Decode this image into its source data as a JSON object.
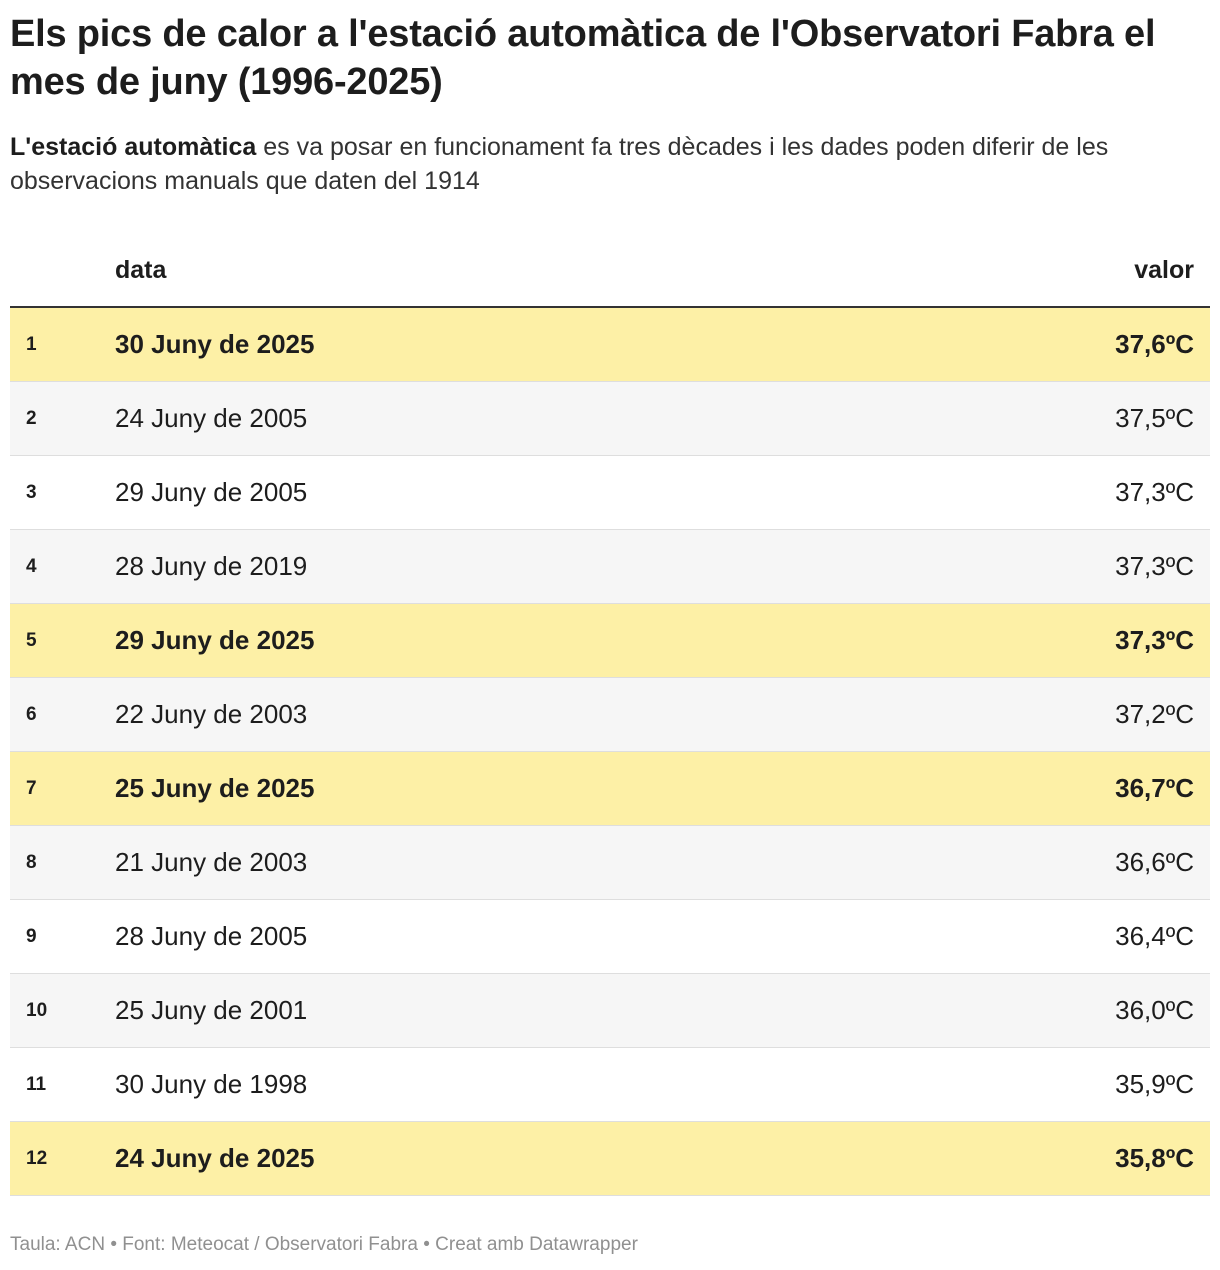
{
  "title": "Els pics de calor a l'estació automàtica de l'Observatori Fabra el mes de juny (1996-2025)",
  "subtitle": {
    "bold": "L'estació automàtica",
    "rest": " es va posar en funcionament fa tres dècades i les dades poden diferir de les observacions manuals que daten del 1914"
  },
  "chart_data": {
    "type": "table",
    "columns": [
      "",
      "data",
      "valor"
    ],
    "highlight_color": "#fdf0a6",
    "rows": [
      {
        "rank": "1",
        "date": "30 Juny de 2025",
        "value": "37,6ºC",
        "highlight": true
      },
      {
        "rank": "2",
        "date": "24 Juny de 2005",
        "value": "37,5ºC",
        "highlight": false
      },
      {
        "rank": "3",
        "date": "29 Juny de 2005",
        "value": "37,3ºC",
        "highlight": false
      },
      {
        "rank": "4",
        "date": "28 Juny de 2019",
        "value": "37,3ºC",
        "highlight": false
      },
      {
        "rank": "5",
        "date": "29 Juny de 2025",
        "value": "37,3ºC",
        "highlight": true
      },
      {
        "rank": "6",
        "date": "22 Juny de 2003",
        "value": "37,2ºC",
        "highlight": false
      },
      {
        "rank": "7",
        "date": "25 Juny de 2025",
        "value": "36,7ºC",
        "highlight": true
      },
      {
        "rank": "8",
        "date": "21 Juny de 2003",
        "value": "36,6ºC",
        "highlight": false
      },
      {
        "rank": "9",
        "date": "28 Juny de 2005",
        "value": "36,4ºC",
        "highlight": false
      },
      {
        "rank": "10",
        "date": "25 Juny de 2001",
        "value": "36,0ºC",
        "highlight": false
      },
      {
        "rank": "11",
        "date": "30 Juny de 1998",
        "value": "35,9ºC",
        "highlight": false
      },
      {
        "rank": "12",
        "date": "24 Juny de 2025",
        "value": "35,8ºC",
        "highlight": true
      }
    ]
  },
  "footer": "Taula: ACN • Font: Meteocat / Observatori Fabra • Creat amb Datawrapper"
}
